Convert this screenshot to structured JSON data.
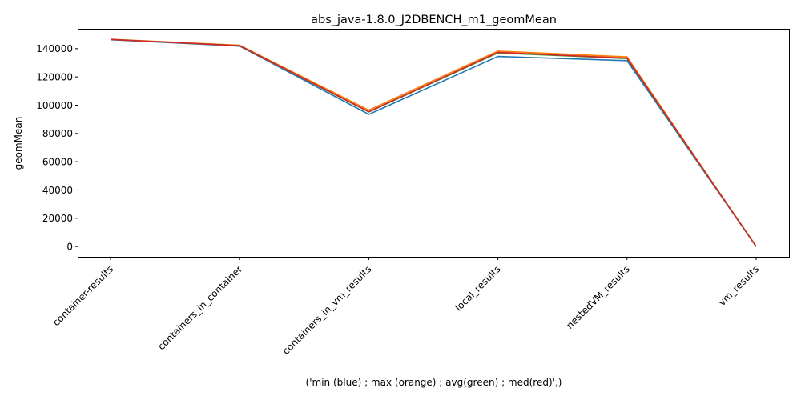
{
  "chart_data": {
    "type": "line",
    "title": "abs_java-1.8.0_J2DBENCH_m1_geomMean",
    "xlabel": "('min (blue) ; max (orange) ; avg(green) ; med(red)',)",
    "ylabel": "geomMean",
    "categories": [
      "container-results",
      "containers_in_container",
      "containers_in_vm_results",
      "local_results",
      "nestedVM_results",
      "vm_results"
    ],
    "ylim": [
      -7300,
      153500
    ],
    "yticks": [
      0,
      20000,
      40000,
      60000,
      80000,
      100000,
      120000,
      140000
    ],
    "grid": false,
    "series": [
      {
        "color": "#1f77b4",
        "values": [
          146300,
          141800,
          93500,
          134500,
          131500,
          0
        ]
      },
      {
        "color": "#ff7f0e",
        "values": [
          146700,
          142400,
          96500,
          138300,
          134200,
          0
        ]
      },
      {
        "color": "#2ca02c",
        "values": [
          146500,
          142100,
          95200,
          137000,
          133000,
          0
        ]
      },
      {
        "color": "#d62728",
        "values": [
          146500,
          142100,
          95400,
          137400,
          133300,
          0
        ]
      }
    ]
  }
}
